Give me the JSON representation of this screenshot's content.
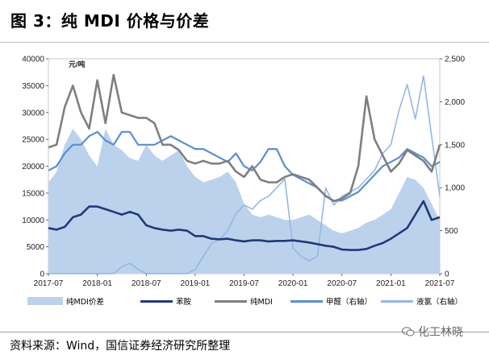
{
  "title": "图 3：纯 MDI 价格与价差",
  "unit_label": "元/吨",
  "source": "资料来源：Wind，国信证券经济研究所整理",
  "watermark": "化工林晓",
  "colors": {
    "spread": "#bcd2ec",
    "aniline": "#203a78",
    "mdi": "#7f7f7f",
    "formaldehyde": "#5b8fd0",
    "chlorine": "#93b7e6"
  },
  "chart_data": {
    "type": "line",
    "title": "",
    "xlabel": "",
    "ylabel": "元/吨",
    "ylim": [
      0,
      40000
    ],
    "y2lim": [
      0,
      2500
    ],
    "yticks": [
      "0",
      "5000",
      "10000",
      "15000",
      "20000",
      "25000",
      "30000",
      "35000",
      "40000"
    ],
    "y2ticks": [
      "0",
      "500",
      "1,000",
      "1,500",
      "2,000",
      "2,500"
    ],
    "xticks": [
      "2017-07",
      "2018-01",
      "2018-07",
      "2019-01",
      "2019-07",
      "2020-01",
      "2020-07",
      "2021-01",
      "2021-07"
    ],
    "legend_position": "bottom",
    "x": [
      "2017-07",
      "2017-08",
      "2017-09",
      "2017-10",
      "2017-11",
      "2017-12",
      "2018-01",
      "2018-02",
      "2018-03",
      "2018-04",
      "2018-05",
      "2018-06",
      "2018-07",
      "2018-08",
      "2018-09",
      "2018-10",
      "2018-11",
      "2018-12",
      "2019-01",
      "2019-02",
      "2019-03",
      "2019-04",
      "2019-05",
      "2019-06",
      "2019-07",
      "2019-08",
      "2019-09",
      "2019-10",
      "2019-11",
      "2019-12",
      "2020-01",
      "2020-02",
      "2020-03",
      "2020-04",
      "2020-05",
      "2020-06",
      "2020-07",
      "2020-08",
      "2020-09",
      "2020-10",
      "2020-11",
      "2020-12",
      "2021-01",
      "2021-02",
      "2021-03",
      "2021-04",
      "2021-05",
      "2021-06",
      "2021-07"
    ],
    "series": [
      {
        "name": "纯MDI价差",
        "axis": "left",
        "style": "area",
        "values": [
          17000,
          19000,
          24000,
          27000,
          25000,
          22000,
          20000,
          27000,
          24000,
          23000,
          21500,
          21000,
          24000,
          22000,
          21000,
          22000,
          23000,
          20000,
          18000,
          17000,
          17500,
          18000,
          19000,
          17000,
          13000,
          11000,
          10500,
          11000,
          10500,
          10000,
          10000,
          10500,
          11000,
          10000,
          9000,
          8000,
          7500,
          8000,
          8500,
          9500,
          10000,
          11000,
          12000,
          15000,
          18000,
          17500,
          16000,
          13000,
          10000
        ]
      },
      {
        "name": "苯胺",
        "axis": "left",
        "style": "line",
        "values": [
          8500,
          8200,
          8700,
          10500,
          11000,
          12500,
          12500,
          12000,
          11500,
          11000,
          11500,
          11000,
          9000,
          8500,
          8200,
          8000,
          8200,
          8000,
          7000,
          7000,
          6500,
          6400,
          6500,
          6200,
          6000,
          6200,
          6200,
          6000,
          6100,
          6100,
          6200,
          6000,
          5800,
          5500,
          5200,
          5000,
          4500,
          4400,
          4400,
          4600,
          5200,
          5700,
          6500,
          7500,
          8500,
          11000,
          13500,
          10000,
          10500
        ]
      },
      {
        "name": "纯MDI",
        "axis": "left",
        "style": "line",
        "values": [
          23500,
          24000,
          31000,
          35000,
          30000,
          27000,
          36000,
          28000,
          37000,
          30000,
          29500,
          29000,
          29000,
          28000,
          24000,
          24000,
          23000,
          21000,
          20500,
          21000,
          20500,
          20500,
          21000,
          19000,
          18000,
          20000,
          17500,
          17000,
          17000,
          18000,
          18500,
          18000,
          17500,
          16000,
          14500,
          13500,
          14000,
          15000,
          20000,
          33000,
          25000,
          22000,
          19000,
          20500,
          23000,
          22000,
          21000,
          19000,
          24000
        ]
      },
      {
        "name": "甲醛（右轴）",
        "axis": "right",
        "style": "line",
        "values": [
          1200,
          1250,
          1400,
          1500,
          1500,
          1600,
          1650,
          1550,
          1500,
          1650,
          1650,
          1500,
          1500,
          1500,
          1550,
          1600,
          1550,
          1500,
          1450,
          1450,
          1400,
          1350,
          1300,
          1400,
          1250,
          1200,
          1300,
          1450,
          1450,
          1250,
          1150,
          1100,
          1050,
          1000,
          900,
          850,
          850,
          900,
          950,
          1050,
          1150,
          1250,
          1300,
          1350,
          1450,
          1400,
          1350,
          1250,
          1300
        ]
      },
      {
        "name": "液氯（右轴）",
        "axis": "right",
        "style": "line",
        "values": [
          1,
          1,
          1,
          1,
          1,
          1,
          1,
          1,
          1,
          80,
          120,
          50,
          1,
          1,
          1,
          1,
          1,
          1,
          50,
          200,
          350,
          400,
          500,
          700,
          800,
          750,
          850,
          900,
          1000,
          1100,
          300,
          200,
          150,
          200,
          1000,
          800,
          900,
          950,
          1000,
          1100,
          1200,
          1400,
          1500,
          1900,
          2200,
          1800,
          2300,
          1600,
          900
        ]
      }
    ]
  }
}
